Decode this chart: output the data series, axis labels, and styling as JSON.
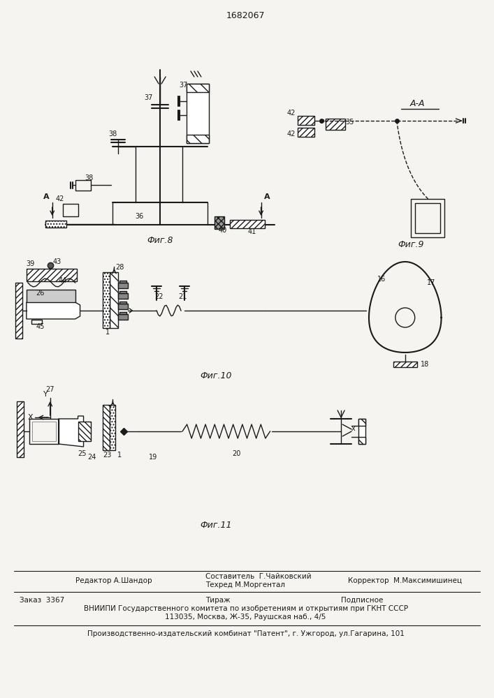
{
  "title": "1682067",
  "fig8_label": "Фиг.8",
  "fig9_label": "Фиг.9",
  "fig10_label": "Фиг.10",
  "fig11_label": "Фиг.11",
  "aa_label": "А-А",
  "bg_color": "#f5f4f0",
  "line_color": "#1a1a1a",
  "footer": {
    "editor": "Редактор А.Шандор",
    "composer": "Составитель  Г.Чайковский",
    "techred": "Техред М.Моргентал",
    "corrector": "Корректор  М.Максимишинец",
    "order": "Заказ  3367",
    "tirazh": "Тираж",
    "podpisnoe": "Подписное",
    "vniiipi": "ВНИИПИ Государственного комитета по изобретениям и открытиям при ГКНТ СССР",
    "address": "113035, Москва, Ж-35, Раушская наб., 4/5",
    "kombinat": "Производственно-издательский комбинат \"Патент\", г. Ужгород, ул.Гагарина, 101"
  }
}
